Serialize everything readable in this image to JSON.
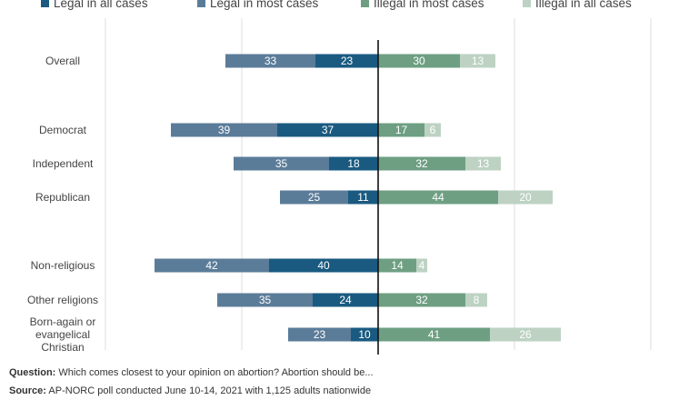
{
  "chart_data": {
    "type": "bar",
    "orientation": "horizontal",
    "stacked": "diverging",
    "legend_position": "top",
    "grid": true,
    "categories": [
      "Overall",
      "Democrat",
      "Independent",
      "Republican",
      "Non-religious",
      "Other religions",
      "Born-again or evangelical Christian"
    ],
    "category_lines": [
      [
        "Overall"
      ],
      [
        "Democrat"
      ],
      [
        "Independent"
      ],
      [
        "Republican"
      ],
      [
        "Non-religious"
      ],
      [
        "Other religions"
      ],
      [
        "Born-again or",
        "evangelical",
        "Christian"
      ]
    ],
    "series": [
      {
        "name": "Legal in all cases",
        "color": "#1a5a80",
        "side": "left",
        "values": [
          23,
          37,
          18,
          11,
          40,
          24,
          10
        ]
      },
      {
        "name": "Legal in most cases",
        "color": "#5b7c99",
        "side": "left",
        "values": [
          33,
          39,
          35,
          25,
          42,
          35,
          23
        ]
      },
      {
        "name": "Illegal in most cases",
        "color": "#6e9f83",
        "side": "right",
        "values": [
          30,
          17,
          32,
          44,
          14,
          32,
          41
        ]
      },
      {
        "name": "Illegal in all cases",
        "color": "#bdd2c3",
        "side": "right",
        "values": [
          13,
          6,
          13,
          20,
          4,
          8,
          26
        ]
      }
    ]
  },
  "footer": {
    "question_label": "Question:",
    "question_text": "Which comes closest to your opinion on abortion? Abortion should be...",
    "source_label": "Source:",
    "source_text": "AP-NORC poll conducted June 10-14, 2021 with 1,125 adults nationwide"
  }
}
